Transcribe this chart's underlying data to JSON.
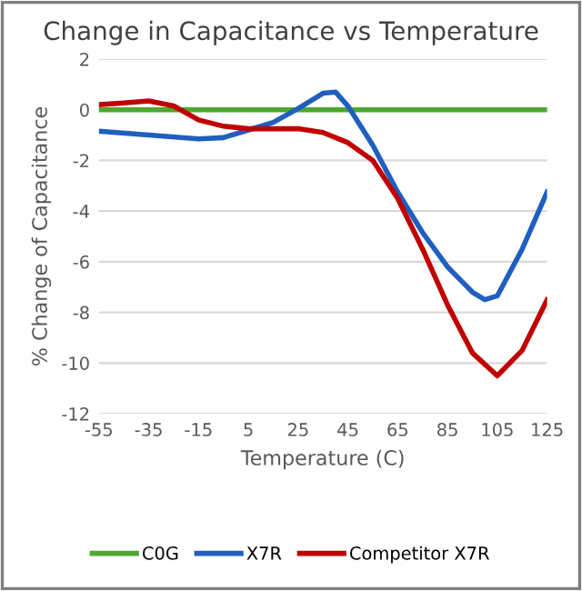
{
  "chart_data": {
    "type": "line",
    "title": "Change in Capacitance vs Temperature",
    "xlabel": "Temperature (C)",
    "ylabel": "% Change of Capacitance",
    "xlim": [
      -55,
      125
    ],
    "xticks": [
      -55,
      -35,
      -15,
      5,
      25,
      45,
      65,
      85,
      105,
      125
    ],
    "ylim": [
      -12,
      2
    ],
    "yticks": [
      -12,
      -10,
      -8,
      -6,
      -4,
      -2,
      0,
      2
    ],
    "grid": "y",
    "legend": "bottom",
    "marker": "none",
    "line_style": "solid",
    "series": [
      {
        "name": "C0G",
        "color": "#4ea72e",
        "x": [
          -55,
          125
        ],
        "values": [
          0,
          0
        ]
      },
      {
        "name": "X7R",
        "color": "#1f5fbf",
        "x": [
          -55,
          -35,
          -15,
          -5,
          5,
          15,
          25,
          35,
          40,
          45,
          55,
          65,
          75,
          85,
          95,
          100,
          105,
          115,
          125
        ],
        "values": [
          -0.85,
          -1.0,
          -1.15,
          -1.1,
          -0.8,
          -0.5,
          0.05,
          0.65,
          0.7,
          0.15,
          -1.4,
          -3.25,
          -4.85,
          -6.2,
          -7.2,
          -7.5,
          -7.35,
          -5.5,
          -3.25
        ]
      },
      {
        "name": "Competitor X7R",
        "color": "#c00000",
        "x": [
          -55,
          -45,
          -35,
          -25,
          -15,
          -5,
          5,
          15,
          25,
          35,
          45,
          55,
          65,
          75,
          85,
          95,
          105,
          115,
          125
        ],
        "values": [
          0.2,
          0.27,
          0.35,
          0.15,
          -0.4,
          -0.65,
          -0.75,
          -0.75,
          -0.75,
          -0.9,
          -1.3,
          -2.0,
          -3.5,
          -5.5,
          -7.7,
          -9.6,
          -10.5,
          -9.5,
          -7.5
        ]
      }
    ]
  }
}
